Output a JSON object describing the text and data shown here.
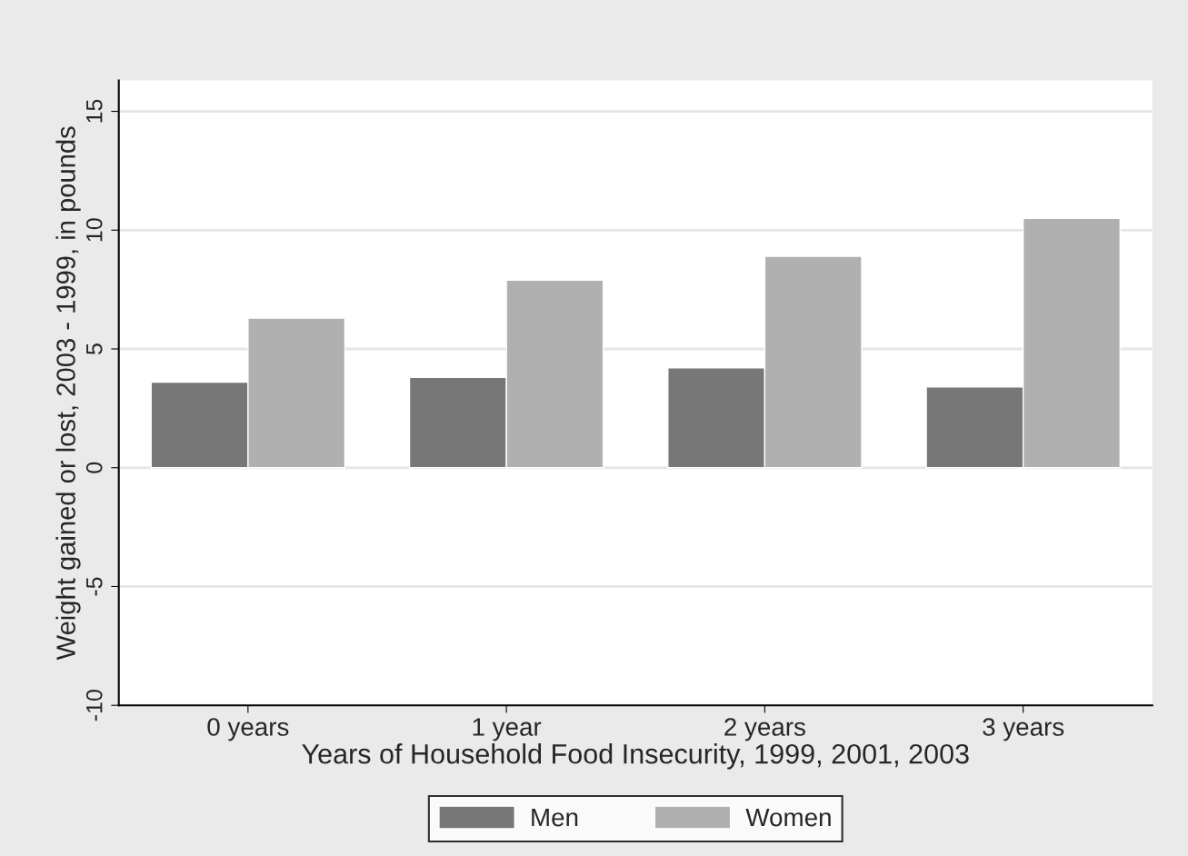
{
  "chart_data": {
    "type": "bar",
    "xlabel": "Years of Household Food Insecurity, 1999, 2001, 2003",
    "ylabel": "Weight gained or lost, 2003 - 1999, in pounds",
    "categories": [
      "0 years",
      "1 year",
      "2 years",
      "3 years"
    ],
    "series": [
      {
        "name": "Men",
        "color": "#777777",
        "values": [
          3.6,
          3.8,
          4.2,
          3.4
        ]
      },
      {
        "name": "Women",
        "color": "#b0b0b0",
        "values": [
          6.3,
          7.9,
          8.9,
          10.5
        ]
      }
    ],
    "ylim": [
      -10,
      16.3
    ],
    "yticks": [
      -10,
      -5,
      0,
      5,
      10,
      15
    ],
    "grid": "y",
    "legend": "bottom"
  }
}
